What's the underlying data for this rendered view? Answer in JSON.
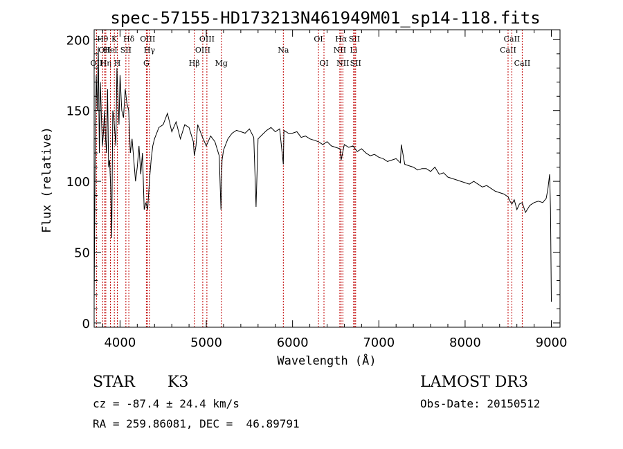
{
  "chart_data": {
    "type": "line",
    "title": "spec-57155-HD173213N461949M01_sp14-118.fits",
    "xlabel": "Wavelength (Å)",
    "ylabel": "Flux (relative)",
    "xlim": [
      3700,
      9100
    ],
    "ylim": [
      -3,
      207
    ],
    "xticks": [
      4000,
      5000,
      6000,
      7000,
      8000,
      9000
    ],
    "yticks": [
      0,
      50,
      100,
      150,
      200
    ],
    "grid": false,
    "line_color": "#000000",
    "marker_color": "#c00000",
    "series": [
      {
        "x": [
          3700,
          3712,
          3724,
          3736,
          3748,
          3760,
          3772,
          3784,
          3796,
          3808,
          3820,
          3832,
          3844,
          3856,
          3868,
          3880,
          3892,
          3904,
          3916,
          3928,
          3940,
          3952,
          3964,
          3976,
          3988,
          4000,
          4020,
          4040,
          4060,
          4080,
          4100,
          4120,
          4140,
          4160,
          4180,
          4200,
          4220,
          4240,
          4260,
          4280,
          4300,
          4320,
          4340,
          4360,
          4380,
          4400,
          4450,
          4500,
          4550,
          4600,
          4650,
          4700,
          4750,
          4800,
          4850,
          4861,
          4880,
          4900,
          4950,
          5000,
          5050,
          5100,
          5150,
          5170,
          5183,
          5200,
          5250,
          5300,
          5350,
          5400,
          5450,
          5500,
          5550,
          5577,
          5600,
          5650,
          5700,
          5750,
          5800,
          5850,
          5893,
          5900,
          5950,
          6000,
          6050,
          6100,
          6150,
          6200,
          6250,
          6300,
          6350,
          6400,
          6450,
          6500,
          6550,
          6563,
          6600,
          6650,
          6700,
          6750,
          6800,
          6850,
          6900,
          6950,
          7000,
          7050,
          7100,
          7150,
          7200,
          7250,
          7260,
          7300,
          7350,
          7400,
          7450,
          7500,
          7550,
          7600,
          7650,
          7700,
          7750,
          7800,
          7850,
          7900,
          7950,
          8000,
          8050,
          8100,
          8150,
          8200,
          8250,
          8300,
          8350,
          8400,
          8450,
          8498,
          8520,
          8542,
          8570,
          8600,
          8630,
          8662,
          8700,
          8750,
          8800,
          8850,
          8900,
          8940,
          8960,
          8980,
          8990,
          9000
        ],
        "y": [
          15,
          120,
          175,
          150,
          195,
          120,
          170,
          145,
          125,
          135,
          150,
          130,
          120,
          165,
          110,
          115,
          95,
          60,
          150,
          145,
          135,
          125,
          180,
          160,
          140,
          175,
          150,
          145,
          165,
          155,
          150,
          120,
          130,
          115,
          100,
          110,
          125,
          105,
          120,
          80,
          85,
          80,
          100,
          115,
          125,
          130,
          138,
          140,
          148,
          135,
          142,
          130,
          140,
          138,
          128,
          118,
          125,
          140,
          132,
          125,
          132,
          128,
          118,
          80,
          115,
          122,
          130,
          134,
          136,
          135,
          134,
          137,
          131,
          82,
          130,
          133,
          136,
          138,
          135,
          137,
          112,
          136,
          134,
          134,
          135,
          131,
          132,
          130,
          129,
          128,
          126,
          128,
          125,
          124,
          123,
          115,
          126,
          124,
          125,
          121,
          123,
          120,
          118,
          119,
          117,
          116,
          114,
          115,
          116,
          113,
          126,
          112,
          111,
          110,
          108,
          109,
          109,
          107,
          110,
          105,
          106,
          103,
          102,
          101,
          100,
          99,
          98,
          100,
          98,
          96,
          97,
          95,
          93,
          92,
          91,
          89,
          86,
          84,
          87,
          80,
          84,
          85,
          78,
          83,
          85,
          86,
          85,
          88,
          95,
          105,
          80,
          15
        ]
      }
    ],
    "lines": [
      {
        "label": "OII",
        "x": 3727,
        "row": 3
      },
      {
        "label": "Hθ",
        "x": 3798,
        "row": 1
      },
      {
        "label": "OII",
        "x": 3820,
        "row": 2
      },
      {
        "label": "Hη",
        "x": 3835,
        "row": 3
      },
      {
        "label": "HeI",
        "x": 3889,
        "row": 2
      },
      {
        "label": "K",
        "x": 3934,
        "row": 1
      },
      {
        "label": "H",
        "x": 3969,
        "row": 3
      },
      {
        "label": "SII",
        "x": 4068,
        "row": 2
      },
      {
        "label": "Hδ",
        "x": 4102,
        "row": 1
      },
      {
        "label": "OIII",
        "x": 4320,
        "row": 1
      },
      {
        "label": "G",
        "x": 4305,
        "row": 3
      },
      {
        "label": "Hγ",
        "x": 4341,
        "row": 2
      },
      {
        "label": "Hβ",
        "x": 4861,
        "row": 3
      },
      {
        "label": "OIII",
        "x": 4959,
        "row": 2
      },
      {
        "label": "OIII",
        "x": 5007,
        "row": 1
      },
      {
        "label": "Mg",
        "x": 5175,
        "row": 3
      },
      {
        "label": "Na",
        "x": 5893,
        "row": 2
      },
      {
        "label": "OI",
        "x": 6300,
        "row": 1
      },
      {
        "label": "OI",
        "x": 6364,
        "row": 3
      },
      {
        "label": "NII",
        "x": 6548,
        "row": 2
      },
      {
        "label": "Hα",
        "x": 6563,
        "row": 1
      },
      {
        "label": "NII",
        "x": 6583,
        "row": 3
      },
      {
        "label": "Li",
        "x": 6708,
        "row": 2
      },
      {
        "label": "SII",
        "x": 6717,
        "row": 1
      },
      {
        "label": "SII",
        "x": 6731,
        "row": 3
      },
      {
        "label": "CaII",
        "x": 8498,
        "row": 2
      },
      {
        "label": "CaII",
        "x": 8542,
        "row": 1
      },
      {
        "label": "CaII",
        "x": 8662,
        "row": 3
      }
    ]
  },
  "info": {
    "class": "STAR",
    "subclass": "K3",
    "survey": "LAMOST DR3",
    "cz": "cz = -87.4 ± 24.4 km/s",
    "obs_date": "Obs-Date: 20150512",
    "radec": "RA = 259.86081, DEC =  46.89791"
  }
}
